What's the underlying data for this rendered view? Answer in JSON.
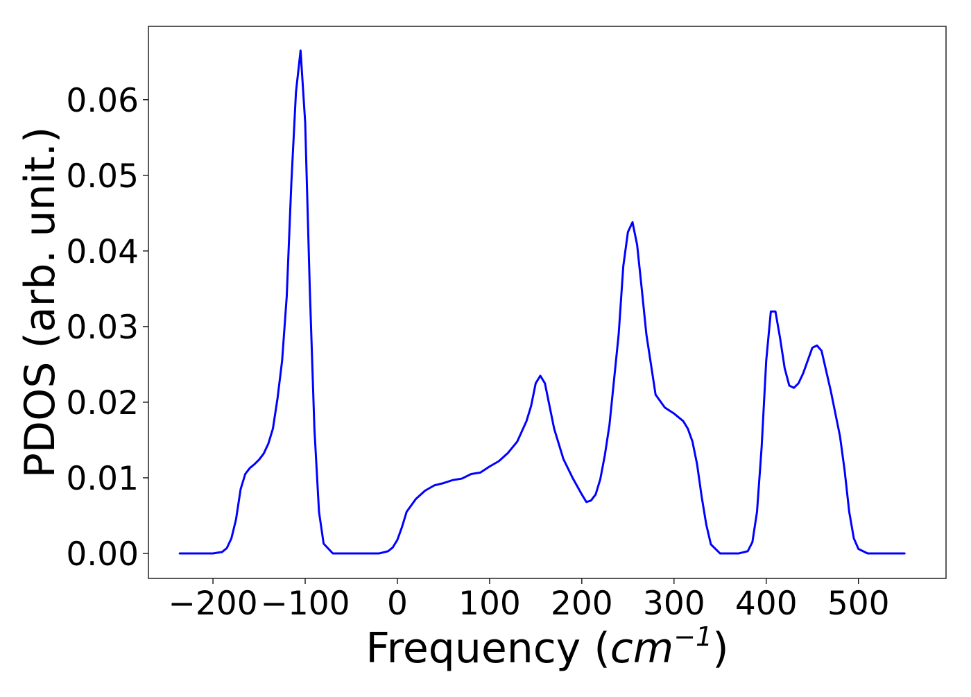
{
  "chart_data": {
    "type": "line",
    "title": "",
    "xlabel": {
      "prefix": "Frequency (",
      "unit_base": "cm",
      "unit_exponent": "−1",
      "suffix": ")"
    },
    "ylabel": "PDOS (arb. unit.)",
    "xlim": [
      -270,
      595
    ],
    "ylim": [
      -0.0033,
      0.0697
    ],
    "x_ticks": [
      -200,
      -100,
      0,
      100,
      200,
      300,
      400,
      500
    ],
    "x_tick_labels": [
      "−200",
      "−100",
      "0",
      "100",
      "200",
      "300",
      "400",
      "500"
    ],
    "y_ticks": [
      0.0,
      0.01,
      0.02,
      0.03,
      0.04,
      0.05,
      0.06
    ],
    "y_tick_labels": [
      "0.00",
      "0.01",
      "0.02",
      "0.03",
      "0.04",
      "0.05",
      "0.06"
    ],
    "grid": false,
    "legend": null,
    "series": [
      {
        "color": "#0000ff",
        "x": [
          -236,
          -200,
          -190,
          -185,
          -180,
          -175,
          -170,
          -165,
          -160,
          -155,
          -150,
          -145,
          -140,
          -135,
          -130,
          -125,
          -120,
          -115,
          -110,
          -105,
          -100,
          -95,
          -90,
          -85,
          -80,
          -70,
          -50,
          -20,
          -10,
          -5,
          0,
          5,
          10,
          20,
          30,
          40,
          50,
          60,
          70,
          80,
          90,
          100,
          110,
          120,
          130,
          140,
          145,
          150,
          155,
          160,
          170,
          180,
          190,
          200,
          205,
          210,
          215,
          220,
          225,
          230,
          240,
          245,
          250,
          255,
          260,
          265,
          270,
          275,
          280,
          290,
          300,
          310,
          315,
          320,
          325,
          330,
          335,
          340,
          350,
          370,
          380,
          385,
          390,
          395,
          400,
          405,
          410,
          415,
          420,
          425,
          430,
          435,
          440,
          450,
          455,
          460,
          470,
          480,
          485,
          490,
          495,
          500,
          510,
          550
        ],
        "y": [
          0.0,
          0.0,
          0.0002,
          0.0007,
          0.002,
          0.0045,
          0.0085,
          0.0105,
          0.0113,
          0.0118,
          0.0124,
          0.0132,
          0.0145,
          0.0165,
          0.0205,
          0.0255,
          0.034,
          0.049,
          0.061,
          0.0665,
          0.057,
          0.035,
          0.0165,
          0.0055,
          0.0013,
          0.0,
          0.0,
          0.0,
          0.0003,
          0.0008,
          0.0018,
          0.0035,
          0.0055,
          0.0072,
          0.0083,
          0.009,
          0.0093,
          0.0097,
          0.0099,
          0.0105,
          0.0107,
          0.0115,
          0.0122,
          0.0133,
          0.0148,
          0.0175,
          0.0195,
          0.0225,
          0.0235,
          0.0225,
          0.0165,
          0.0125,
          0.01,
          0.0078,
          0.0068,
          0.007,
          0.0078,
          0.0098,
          0.013,
          0.017,
          0.029,
          0.038,
          0.0425,
          0.0438,
          0.0408,
          0.035,
          0.029,
          0.025,
          0.021,
          0.0193,
          0.0185,
          0.0175,
          0.0165,
          0.0148,
          0.0118,
          0.0075,
          0.0038,
          0.0012,
          0.0,
          0.0,
          0.0003,
          0.0015,
          0.0055,
          0.014,
          0.0255,
          0.032,
          0.032,
          0.0285,
          0.0245,
          0.0222,
          0.0219,
          0.0225,
          0.0238,
          0.0272,
          0.0275,
          0.0268,
          0.0215,
          0.0155,
          0.011,
          0.0055,
          0.002,
          0.0006,
          0.0,
          0.0
        ]
      }
    ]
  }
}
